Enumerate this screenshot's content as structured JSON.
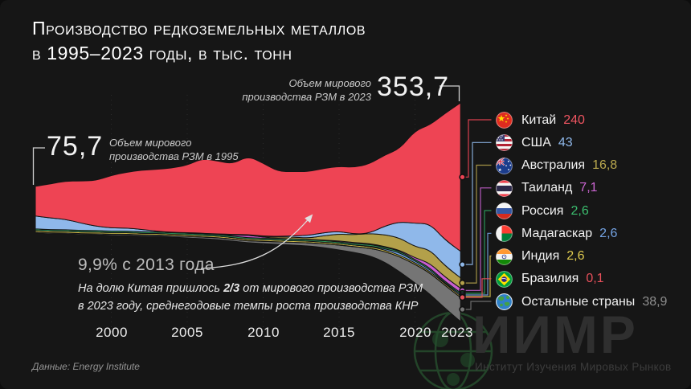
{
  "title": {
    "line1": "Производство редкоземельных металлов",
    "line2": "в 1995–2023 годы, в тыс. тонн"
  },
  "annotations": {
    "start": {
      "value": "75,7",
      "label_line1": "Объем мирового",
      "label_line2": "производства РЗМ в 1995"
    },
    "end": {
      "value": "353,7",
      "label_line1": "Объем мирового",
      "label_line2": "производства РЗМ в 2023"
    },
    "growth": {
      "headline": "9,9% с 2013 года",
      "line1_pre": "На долю Китая пришлось ",
      "line1_bold": "2/3",
      "line1_post": " от мирового производства РЗМ",
      "line2": "в 2023 году, среднегодовые темпы роста производства КНР"
    }
  },
  "source": "Данные: Energy Institute",
  "watermark": {
    "acronym": "ИИМР",
    "full": "Институт Изучения Мировых Рынков"
  },
  "legend": {
    "items": [
      {
        "id": "china",
        "label": "Китай",
        "value": "240",
        "value_color": "#ef5561"
      },
      {
        "id": "usa",
        "label": "США",
        "value": "43",
        "value_color": "#8fb8ea"
      },
      {
        "id": "australia",
        "label": "Австралия",
        "value": "16,8",
        "value_color": "#bba94e"
      },
      {
        "id": "thailand",
        "label": "Таиланд",
        "value": "7,1",
        "value_color": "#cd66d4"
      },
      {
        "id": "russia",
        "label": "Россия",
        "value": "2,6",
        "value_color": "#3bbd6e"
      },
      {
        "id": "madagascar",
        "label": "Мадагаскар",
        "value": "2,6",
        "value_color": "#74a3e3"
      },
      {
        "id": "india",
        "label": "Индия",
        "value": "2,6",
        "value_color": "#ddc94f"
      },
      {
        "id": "brazil",
        "label": "Бразилия",
        "value": "0,1",
        "value_color": "#e8505b"
      },
      {
        "id": "others",
        "label": "Остальные страны",
        "value": "38,9",
        "value_color": "#8e8e8e"
      }
    ]
  },
  "chart_data": {
    "type": "area",
    "title": "Производство редкоземельных металлов в 1995–2023 годы, в тыс. тонн",
    "unit": "тыс. тонн",
    "x": [
      1995,
      1996,
      1997,
      1998,
      1999,
      2000,
      2001,
      2002,
      2003,
      2004,
      2005,
      2006,
      2007,
      2008,
      2009,
      2010,
      2011,
      2012,
      2013,
      2014,
      2015,
      2016,
      2017,
      2018,
      2019,
      2020,
      2021,
      2022,
      2023
    ],
    "x_ticks": [
      {
        "label": "2000",
        "year": 2000
      },
      {
        "label": "2005",
        "year": 2005
      },
      {
        "label": "2010",
        "year": 2010
      },
      {
        "label": "2015",
        "year": 2015
      },
      {
        "label": "2020",
        "year": 2020
      },
      {
        "label": "2023",
        "year": 2023
      }
    ],
    "totals": {
      "1995": 75.7,
      "2023": 353.7
    },
    "series": [
      {
        "id": "china",
        "name": "Китай",
        "color": "#ee4454",
        "values": [
          48,
          55,
          62,
          68,
          74,
          85,
          90,
          96,
          100,
          104,
          109,
          121,
          118,
          114,
          127,
          118,
          105,
          104,
          103,
          104,
          105,
          108,
          112,
          115,
          118,
          150,
          160,
          206,
          240
        ]
      },
      {
        "id": "usa",
        "name": "США",
        "color": "#8fb8ea",
        "values": [
          21,
          19,
          17,
          12,
          7,
          5,
          5,
          4,
          1,
          0.5,
          0.5,
          0.5,
          0.5,
          0.5,
          0.5,
          0.5,
          1,
          2,
          4.5,
          5,
          4.5,
          1,
          0.5,
          14,
          26,
          38,
          42,
          42,
          43
        ]
      },
      {
        "id": "australia",
        "name": "Австралия",
        "color": "#b3a04a",
        "values": [
          0,
          0,
          0,
          0,
          0,
          0,
          0,
          0,
          0,
          0,
          0.5,
          0.5,
          0.5,
          0.5,
          0.5,
          1,
          2,
          3,
          2,
          7,
          11,
          13,
          16,
          19,
          20,
          18,
          22,
          18,
          16.8
        ]
      },
      {
        "id": "thailand",
        "name": "Таиланд",
        "color": "#c95fd0",
        "values": [
          0,
          0,
          0,
          0,
          0,
          0,
          0,
          0,
          0,
          0,
          0,
          0,
          0,
          1.5,
          4,
          2,
          0.5,
          0.3,
          0.5,
          1,
          1.5,
          1.5,
          1.5,
          1,
          1.5,
          2.5,
          7.5,
          7.2,
          7.1
        ]
      },
      {
        "id": "russia",
        "name": "Россия",
        "color": "#2f9e5f",
        "values": [
          2.5,
          2.5,
          2.5,
          2.5,
          2.5,
          2.5,
          2.5,
          2.5,
          2.5,
          2.5,
          2.5,
          2.5,
          2.5,
          2.5,
          2.5,
          2.5,
          2.5,
          2.5,
          2.5,
          2.5,
          2.5,
          2.5,
          2.5,
          2.5,
          2.5,
          2.5,
          2.5,
          2.5,
          2.6
        ]
      },
      {
        "id": "madagascar",
        "name": "Мадагаскар",
        "color": "#74a3e3",
        "values": [
          0,
          0,
          0,
          0,
          0,
          0,
          0,
          0,
          0,
          0,
          0,
          0,
          0,
          0,
          0,
          0,
          0,
          0,
          0,
          0,
          0,
          0,
          1,
          2,
          4,
          2.8,
          3.2,
          1,
          2.6
        ]
      },
      {
        "id": "india",
        "name": "Индия",
        "color": "#ddc94f",
        "values": [
          2.5,
          2.5,
          2.5,
          2.5,
          2.5,
          2.5,
          2.5,
          2.5,
          2.5,
          2.5,
          2.5,
          2.5,
          2.5,
          2.5,
          2.5,
          2.5,
          2.5,
          2.5,
          2.5,
          2.5,
          2.5,
          2.5,
          2.5,
          2.5,
          2.5,
          2.5,
          2.5,
          2.5,
          2.6
        ]
      },
      {
        "id": "brazil",
        "name": "Бразилия",
        "color": "#e8505b",
        "values": [
          0.2,
          0.2,
          0.2,
          0.2,
          0.2,
          0.2,
          0.2,
          0.2,
          0.2,
          0.2,
          0.2,
          0.2,
          0.2,
          0.2,
          0.2,
          0.2,
          0.2,
          0.2,
          0.2,
          0.2,
          0.2,
          0.2,
          0.2,
          0.2,
          0.2,
          0.2,
          0.2,
          0.2,
          0.1
        ]
      },
      {
        "id": "others",
        "name": "Остальные страны",
        "color": "#757575",
        "values": [
          1.5,
          1.5,
          1.5,
          1.5,
          1.5,
          2,
          2,
          2,
          2,
          2,
          2.5,
          2.5,
          3,
          3,
          3,
          3.5,
          4,
          4.5,
          5,
          6,
          8,
          9,
          12,
          17,
          24,
          30,
          34,
          37,
          38.9
        ]
      }
    ]
  }
}
